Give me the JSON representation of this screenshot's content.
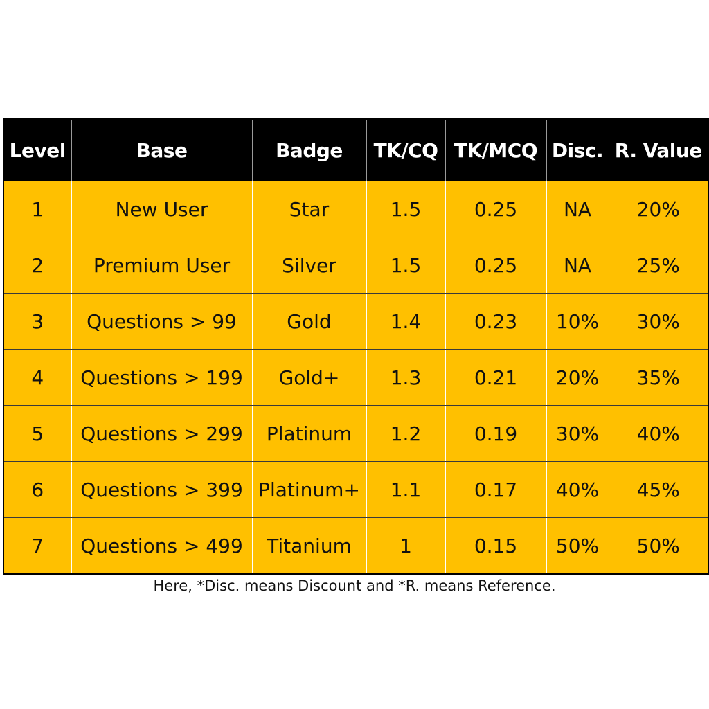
{
  "table": {
    "headers": [
      "Level",
      "Base",
      "Badge",
      "TK/CQ",
      "TK/MCQ",
      "Disc.",
      "R. Value"
    ],
    "rows": [
      [
        "1",
        "New User",
        "Star",
        "1.5",
        "0.25",
        "NA",
        "20%"
      ],
      [
        "2",
        "Premium User",
        "Silver",
        "1.5",
        "0.25",
        "NA",
        "25%"
      ],
      [
        "3",
        "Questions > 99",
        "Gold",
        "1.4",
        "0.23",
        "10%",
        "30%"
      ],
      [
        "4",
        "Questions > 199",
        "Gold+",
        "1.3",
        "0.21",
        "20%",
        "35%"
      ],
      [
        "5",
        "Questions > 299",
        "Platinum",
        "1.2",
        "0.19",
        "30%",
        "40%"
      ],
      [
        "6",
        "Questions > 399",
        "Platinum+",
        "1.1",
        "0.17",
        "40%",
        "45%"
      ],
      [
        "7",
        "Questions > 499",
        "Titanium",
        "1",
        "0.15",
        "50%",
        "50%"
      ]
    ]
  },
  "footnote": "Here, *Disc. means Discount and *R. means Reference.",
  "colors": {
    "header_bg": "#000000",
    "header_text": "#ffffff",
    "row_bg": "#ffc000",
    "row_text": "#111111"
  }
}
